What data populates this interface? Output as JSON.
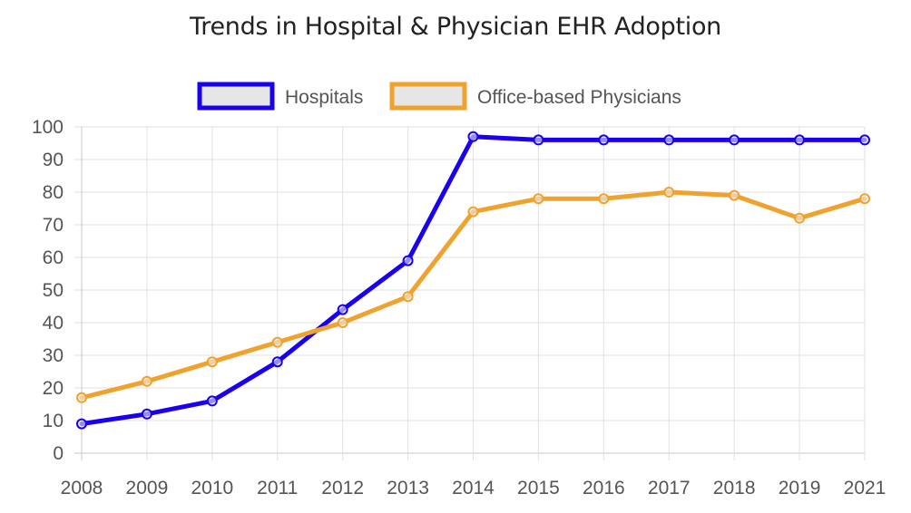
{
  "chart_data": {
    "type": "line",
    "title": "Trends in Hospital & Physician EHR Adoption",
    "xlabel": "",
    "ylabel": "",
    "categories": [
      "2008",
      "2009",
      "2010",
      "2011",
      "2012",
      "2013",
      "2014",
      "2015",
      "2016",
      "2017",
      "2018",
      "2019",
      "2021"
    ],
    "series": [
      {
        "name": "Hospitals",
        "color": "#1a00ee",
        "values": [
          9,
          12,
          16,
          28,
          44,
          59,
          97,
          96,
          96,
          96,
          96,
          96,
          96
        ]
      },
      {
        "name": "Office-based Physicians",
        "color": "#f0a22e",
        "values": [
          17,
          22,
          28,
          34,
          40,
          48,
          74,
          78,
          78,
          80,
          79,
          72,
          78
        ]
      }
    ],
    "ylim": [
      0,
      100
    ],
    "yticks": [
      0,
      10,
      20,
      30,
      40,
      50,
      60,
      70,
      80,
      90,
      100
    ],
    "grid": true,
    "legend_position": "top"
  }
}
